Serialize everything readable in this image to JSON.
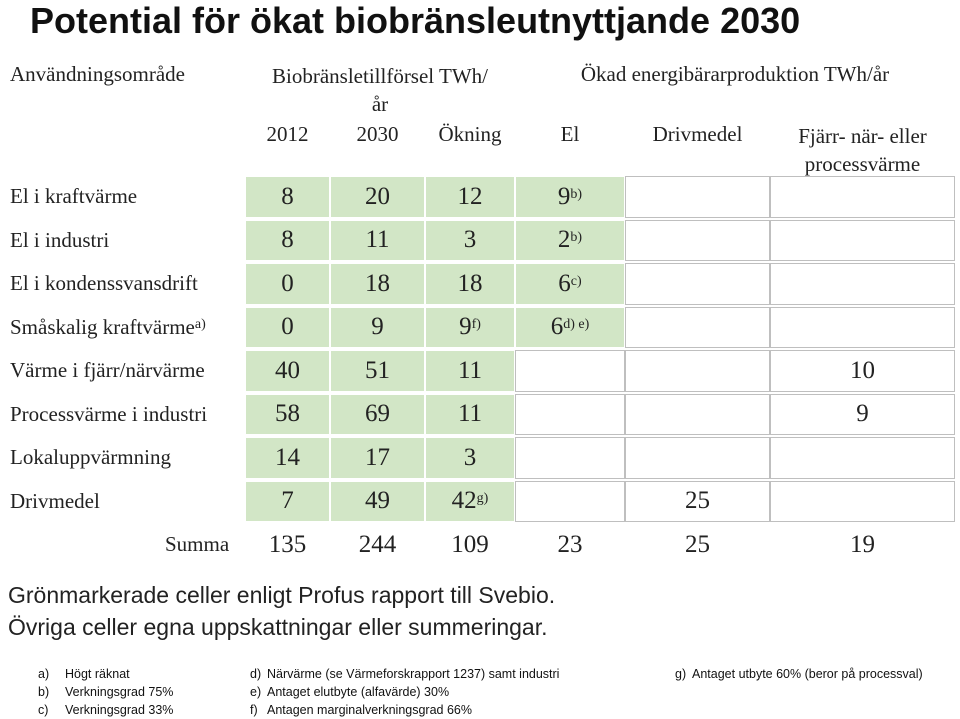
{
  "title": "Potential för ökat biobränsleutnyttjande 2030",
  "table": {
    "area_header": "Användningsområde",
    "supply_header": "Biobränsletillförsel TWh/år",
    "production_header": "Ökad energibärarproduktion TWh/år",
    "columns": [
      "2012",
      "2030",
      "Ökning",
      "El",
      "Drivmedel",
      "Fjärr- när- eller processvärme"
    ],
    "rows": [
      {
        "label": {
          "text": "El i kraftvärme",
          "note": null
        },
        "cells": [
          {
            "text": "8",
            "note": null
          },
          {
            "text": "20",
            "note": null
          },
          {
            "text": "12",
            "note": null
          },
          {
            "text": "9",
            "note": "b)"
          },
          null,
          null
        ]
      },
      {
        "label": {
          "text": "El i industri",
          "note": null
        },
        "cells": [
          {
            "text": "8",
            "note": null
          },
          {
            "text": "11",
            "note": null
          },
          {
            "text": "3",
            "note": null
          },
          {
            "text": "2",
            "note": "b)"
          },
          null,
          null
        ]
      },
      {
        "label": {
          "text": "El i kondenssvansdrift",
          "note": null
        },
        "cells": [
          {
            "text": "0",
            "note": null
          },
          {
            "text": "18",
            "note": null
          },
          {
            "text": "18",
            "note": null
          },
          {
            "text": "6",
            "note": "c)"
          },
          null,
          null
        ]
      },
      {
        "label": {
          "text": "Småskalig kraftvärme",
          "note": "a)"
        },
        "cells": [
          {
            "text": "0",
            "note": null
          },
          {
            "text": "9",
            "note": null
          },
          {
            "text": "9",
            "note": "f)"
          },
          {
            "text": "6",
            "note": "d) e)"
          },
          null,
          null
        ]
      },
      {
        "label": {
          "text": "Värme i fjärr/närvärme",
          "note": null
        },
        "cells": [
          {
            "text": "40",
            "note": null
          },
          {
            "text": "51",
            "note": null
          },
          {
            "text": "11",
            "note": null
          },
          null,
          null,
          {
            "text": "10",
            "note": null
          }
        ]
      },
      {
        "label": {
          "text": "Processvärme i industri",
          "note": null
        },
        "cells": [
          {
            "text": "58",
            "note": null
          },
          {
            "text": "69",
            "note": null
          },
          {
            "text": "11",
            "note": null
          },
          null,
          null,
          {
            "text": "9",
            "note": null
          }
        ]
      },
      {
        "label": {
          "text": "Lokaluppvärmning",
          "note": null
        },
        "cells": [
          {
            "text": "14",
            "note": null
          },
          {
            "text": "17",
            "note": null
          },
          {
            "text": "3",
            "note": null
          },
          null,
          null,
          null
        ]
      },
      {
        "label": {
          "text": "Drivmedel",
          "note": null
        },
        "cells": [
          {
            "text": "7",
            "note": null
          },
          {
            "text": "49",
            "note": null
          },
          {
            "text": "42",
            "note": "g)"
          },
          null,
          {
            "text": "25",
            "note": null
          },
          null
        ]
      },
      {
        "label": {
          "text": "Summa",
          "note": null
        },
        "cells": [
          {
            "text": "135",
            "note": null
          },
          {
            "text": "244",
            "note": null
          },
          {
            "text": "109",
            "note": null
          },
          {
            "text": "23",
            "note": null
          },
          {
            "text": "25",
            "note": null
          },
          {
            "text": "19",
            "note": null
          }
        ]
      }
    ]
  },
  "remarks": [
    "Grönmarkerade celler enligt Profus rapport till Svebio.",
    "Övriga celler egna uppskattningar eller summeringar."
  ],
  "footnotes": [
    {
      "key": "a)",
      "text": "Högt räknat"
    },
    {
      "key": "b)",
      "text": "Verkningsgrad 75%"
    },
    {
      "key": "c)",
      "text": "Verkningsgrad 33%"
    },
    {
      "key": "d)",
      "text": "Närvärme (se Värmeforskrapport 1237) samt industri"
    },
    {
      "key": "e)",
      "text": "Antaget elutbyte (alfavärde) 30%"
    },
    {
      "key": "f)",
      "text": "Antagen marginalverkningsgrad 66%"
    },
    {
      "key": "g)",
      "text": "Antaget utbyte 60% (beror på processval)"
    }
  ]
}
